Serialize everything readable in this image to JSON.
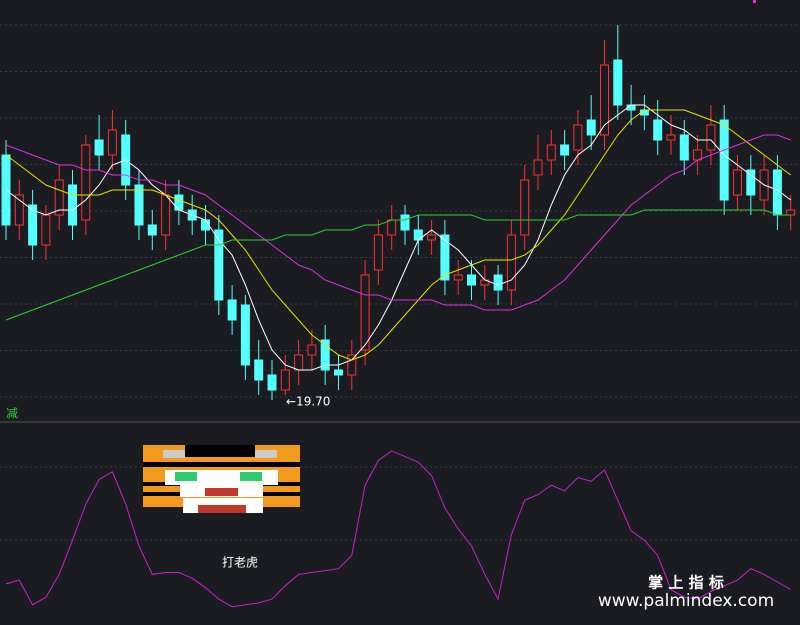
{
  "chart_data": [
    {
      "type": "candlestick",
      "annotation": "←19.70",
      "ylim": [
        19.3,
        27.7
      ],
      "up_color": "#ff3232",
      "down_color": "#54ffff",
      "open": [
        24.6,
        23.2,
        23.6,
        22.8,
        23.4,
        24.0,
        23.3,
        24.9,
        24.6,
        25.0,
        24.0,
        23.2,
        23.0,
        23.8,
        23.5,
        23.3,
        23.1,
        21.7,
        21.6,
        20.5,
        20.2,
        19.9,
        20.3,
        20.6,
        20.9,
        20.3,
        20.2,
        20.7,
        22.3,
        23.0,
        23.4,
        23.1,
        22.9,
        23.0,
        22.1,
        22.2,
        22.0,
        22.2,
        21.9,
        23.0,
        24.2,
        24.5,
        24.8,
        24.7,
        25.3,
        25.0,
        26.5,
        25.6,
        25.5,
        25.3,
        24.9,
        25.0,
        24.5,
        24.7,
        25.3,
        23.8,
        24.3,
        23.7,
        24.3,
        23.4
      ],
      "high": [
        24.9,
        24.1,
        23.9,
        23.6,
        24.4,
        24.3,
        25.0,
        25.4,
        25.5,
        25.3,
        24.3,
        23.5,
        24.1,
        24.1,
        23.8,
        23.6,
        23.4,
        22.0,
        21.8,
        20.9,
        20.5,
        20.6,
        20.9,
        21.1,
        21.2,
        20.6,
        20.9,
        22.5,
        23.3,
        23.6,
        23.6,
        23.4,
        23.3,
        23.3,
        22.5,
        22.5,
        22.4,
        22.4,
        23.3,
        24.4,
        25.0,
        25.1,
        25.1,
        25.5,
        25.8,
        26.9,
        27.2,
        26.0,
        25.8,
        25.7,
        25.4,
        25.3,
        25.0,
        25.6,
        25.6,
        24.6,
        24.6,
        24.6,
        24.6,
        23.8
      ],
      "low": [
        22.9,
        22.9,
        22.5,
        22.5,
        23.1,
        22.9,
        23.0,
        24.3,
        24.3,
        23.7,
        22.9,
        22.7,
        22.7,
        23.2,
        23.0,
        22.8,
        21.4,
        21.0,
        20.1,
        19.8,
        19.7,
        19.8,
        20.0,
        20.3,
        20.0,
        19.9,
        19.9,
        20.4,
        22.0,
        22.7,
        22.8,
        22.6,
        22.6,
        21.8,
        21.8,
        21.7,
        21.7,
        21.6,
        21.6,
        22.7,
        23.9,
        24.2,
        24.3,
        24.4,
        24.7,
        24.7,
        25.3,
        25.2,
        25.1,
        24.6,
        24.6,
        24.2,
        24.2,
        24.4,
        23.4,
        23.5,
        23.4,
        23.4,
        23.1,
        23.1
      ],
      "close": [
        23.2,
        23.8,
        22.8,
        23.4,
        24.1,
        23.2,
        24.8,
        24.6,
        25.1,
        24.0,
        23.2,
        23.0,
        23.8,
        23.5,
        23.3,
        23.1,
        21.7,
        21.3,
        20.4,
        20.1,
        19.9,
        20.3,
        20.6,
        20.8,
        20.3,
        20.2,
        20.6,
        22.2,
        23.0,
        23.3,
        23.1,
        22.9,
        23.0,
        22.1,
        22.2,
        22.0,
        22.1,
        21.9,
        23.0,
        24.1,
        24.5,
        24.8,
        24.6,
        25.2,
        25.0,
        26.4,
        25.6,
        25.5,
        25.4,
        24.9,
        25.0,
        24.5,
        24.7,
        25.2,
        23.7,
        24.3,
        23.8,
        24.3,
        23.4,
        23.5
      ],
      "series": [
        {
          "color": "#ffffff",
          "values": [
            23.9,
            23.7,
            23.5,
            23.4,
            23.5,
            23.5,
            23.7,
            24.0,
            24.4,
            24.5,
            24.3,
            24.0,
            23.8,
            23.5,
            23.4,
            23.3,
            22.9,
            22.6,
            22.0,
            21.3,
            20.7,
            20.4,
            20.3,
            20.3,
            20.4,
            20.4,
            20.5,
            20.8,
            21.2,
            21.7,
            22.3,
            22.9,
            23.1,
            22.9,
            22.7,
            22.4,
            22.1,
            22.0,
            22.1,
            22.4,
            22.9,
            23.6,
            24.2,
            24.6,
            24.8,
            25.2,
            25.4,
            25.6,
            25.6,
            25.4,
            25.2,
            25.1,
            24.9,
            24.9,
            24.6,
            24.4,
            24.2,
            24.0,
            23.9,
            23.7
          ]
        },
        {
          "color": "#e6e600",
          "values": [
            24.6,
            24.4,
            24.2,
            24.0,
            23.9,
            23.8,
            23.8,
            23.8,
            23.9,
            23.9,
            23.9,
            23.9,
            23.8,
            23.7,
            23.6,
            23.5,
            23.3,
            23.0,
            22.7,
            22.3,
            21.9,
            21.6,
            21.3,
            21.0,
            20.8,
            20.6,
            20.5,
            20.6,
            20.8,
            21.1,
            21.4,
            21.7,
            22.0,
            22.2,
            22.3,
            22.4,
            22.5,
            22.5,
            22.5,
            22.6,
            22.8,
            23.1,
            23.4,
            23.8,
            24.2,
            24.6,
            25.0,
            25.3,
            25.5,
            25.5,
            25.5,
            25.5,
            25.4,
            25.3,
            25.2,
            25.0,
            24.8,
            24.6,
            24.4,
            24.2
          ]
        },
        {
          "color": "#e030e0",
          "values": [
            24.8,
            24.7,
            24.6,
            24.5,
            24.4,
            24.4,
            24.3,
            24.3,
            24.2,
            24.2,
            24.1,
            24.1,
            24.0,
            24.0,
            23.9,
            23.8,
            23.6,
            23.4,
            23.2,
            23.0,
            22.8,
            22.6,
            22.4,
            22.3,
            22.1,
            22.0,
            21.9,
            21.8,
            21.8,
            21.7,
            21.7,
            21.7,
            21.7,
            21.6,
            21.6,
            21.6,
            21.5,
            21.5,
            21.5,
            21.6,
            21.7,
            21.9,
            22.1,
            22.4,
            22.7,
            23.0,
            23.3,
            23.6,
            23.8,
            24.0,
            24.2,
            24.3,
            24.5,
            24.6,
            24.7,
            24.8,
            24.9,
            25.0,
            25.0,
            24.9
          ]
        },
        {
          "color": "#30d030",
          "values": [
            21.3,
            21.4,
            21.5,
            21.6,
            21.7,
            21.8,
            21.9,
            22.0,
            22.1,
            22.2,
            22.3,
            22.4,
            22.5,
            22.6,
            22.7,
            22.8,
            22.8,
            22.9,
            22.9,
            22.9,
            22.9,
            23.0,
            23.0,
            23.0,
            23.1,
            23.1,
            23.1,
            23.2,
            23.2,
            23.3,
            23.3,
            23.4,
            23.4,
            23.4,
            23.4,
            23.4,
            23.3,
            23.3,
            23.3,
            23.3,
            23.3,
            23.3,
            23.3,
            23.4,
            23.4,
            23.4,
            23.4,
            23.4,
            23.5,
            23.5,
            23.5,
            23.5,
            23.5,
            23.5,
            23.5,
            23.5,
            23.5,
            23.5,
            23.4,
            23.4
          ]
        }
      ]
    },
    {
      "type": "line",
      "signal_label": "减",
      "title": "打老虎",
      "ylim": [
        0,
        100
      ],
      "series": [
        {
          "color": "#d020d0",
          "values": [
            19,
            21,
            8,
            12,
            24,
            42,
            61,
            74,
            78,
            61,
            39,
            24,
            25,
            25,
            22,
            17,
            11,
            7,
            8,
            9,
            11,
            18,
            24,
            25,
            26,
            27,
            34,
            71,
            84,
            89,
            86,
            83,
            76,
            59,
            48,
            39,
            24,
            11,
            45,
            63,
            66,
            71,
            68,
            75,
            73,
            79,
            63,
            47,
            42,
            34,
            16,
            12,
            11,
            15,
            18,
            21,
            27,
            24,
            20,
            16
          ]
        }
      ]
    }
  ],
  "watermark": {
    "title": "掌 上 指 标",
    "url": "www.palmindex.com"
  }
}
